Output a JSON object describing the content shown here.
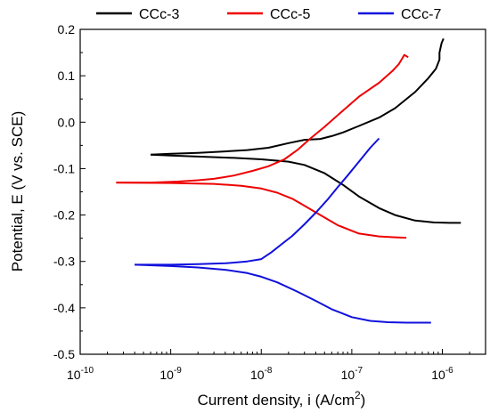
{
  "chart_data": {
    "type": "line",
    "title": "",
    "xlabel_parts": [
      "Current density, i (A/cm",
      "2",
      ")"
    ],
    "ylabel": "Potential, E (V vs. SCE)",
    "x_scale": "log",
    "xlim": [
      1e-10,
      3e-06
    ],
    "ylim": [
      -0.5,
      0.2
    ],
    "x_ticks": [
      {
        "base": "10",
        "exp": "-10",
        "value": 1e-10
      },
      {
        "base": "10",
        "exp": "-9",
        "value": 1e-09
      },
      {
        "base": "10",
        "exp": "-8",
        "value": 1e-08
      },
      {
        "base": "10",
        "exp": "-7",
        "value": 1e-07
      },
      {
        "base": "10",
        "exp": "-6",
        "value": 1e-06
      }
    ],
    "y_ticks": [
      "0.2",
      "0.1",
      "0.0",
      "-0.1",
      "-0.2",
      "-0.3",
      "-0.4",
      "-0.5"
    ],
    "grid": false,
    "legend_position": "top",
    "series": [
      {
        "name": "CCc-3",
        "color": "#000000",
        "anodic": [
          [
            6e-10,
            -0.07
          ],
          [
            1e-09,
            -0.068
          ],
          [
            2e-09,
            -0.066
          ],
          [
            4e-09,
            -0.063
          ],
          [
            7e-09,
            -0.06
          ],
          [
            1.2e-08,
            -0.055
          ],
          [
            2e-08,
            -0.045
          ],
          [
            3e-08,
            -0.038
          ],
          [
            4.5e-08,
            -0.036
          ],
          [
            6e-08,
            -0.03
          ],
          [
            8e-08,
            -0.022
          ],
          [
            1.2e-07,
            -0.008
          ],
          [
            2e-07,
            0.01
          ],
          [
            3e-07,
            0.03
          ],
          [
            5e-07,
            0.065
          ],
          [
            7e-07,
            0.095
          ],
          [
            8.5e-07,
            0.115
          ],
          [
            9.3e-07,
            0.135
          ],
          [
            9.3e-07,
            0.15
          ],
          [
            9.8e-07,
            0.17
          ],
          [
            1.03e-06,
            0.18
          ]
        ],
        "cathodic": [
          [
            6e-10,
            -0.07
          ],
          [
            1e-09,
            -0.072
          ],
          [
            2e-09,
            -0.074
          ],
          [
            5e-09,
            -0.077
          ],
          [
            1e-08,
            -0.08
          ],
          [
            2e-08,
            -0.085
          ],
          [
            3e-08,
            -0.092
          ],
          [
            5e-08,
            -0.11
          ],
          [
            8e-08,
            -0.135
          ],
          [
            1.2e-07,
            -0.16
          ],
          [
            2e-07,
            -0.185
          ],
          [
            3e-07,
            -0.2
          ],
          [
            5e-07,
            -0.212
          ],
          [
            8e-07,
            -0.216
          ],
          [
            1.2e-06,
            -0.217
          ],
          [
            1.6e-06,
            -0.217
          ]
        ]
      },
      {
        "name": "CCc-5",
        "color": "#ee0000",
        "anodic": [
          [
            2.5e-10,
            -0.13
          ],
          [
            6e-10,
            -0.13
          ],
          [
            1.2e-09,
            -0.128
          ],
          [
            2e-09,
            -0.125
          ],
          [
            3e-09,
            -0.122
          ],
          [
            5e-09,
            -0.115
          ],
          [
            8e-09,
            -0.105
          ],
          [
            1.2e-08,
            -0.095
          ],
          [
            1.8e-08,
            -0.08
          ],
          [
            2.5e-08,
            -0.06
          ],
          [
            3.5e-08,
            -0.035
          ],
          [
            5e-08,
            -0.01
          ],
          [
            8e-08,
            0.025
          ],
          [
            1.2e-07,
            0.055
          ],
          [
            2e-07,
            0.085
          ],
          [
            2.8e-07,
            0.11
          ],
          [
            3.3e-07,
            0.125
          ],
          [
            3.8e-07,
            0.145
          ],
          [
            4.2e-07,
            0.14
          ]
        ],
        "cathodic": [
          [
            2.5e-10,
            -0.13
          ],
          [
            1e-09,
            -0.131
          ],
          [
            3e-09,
            -0.133
          ],
          [
            6e-09,
            -0.137
          ],
          [
            1e-08,
            -0.143
          ],
          [
            1.5e-08,
            -0.152
          ],
          [
            2.2e-08,
            -0.165
          ],
          [
            3e-08,
            -0.18
          ],
          [
            4.5e-08,
            -0.2
          ],
          [
            7e-08,
            -0.222
          ],
          [
            1.2e-07,
            -0.24
          ],
          [
            2e-07,
            -0.246
          ],
          [
            3e-07,
            -0.248
          ],
          [
            4e-07,
            -0.249
          ]
        ]
      },
      {
        "name": "CCc-7",
        "color": "#1010dd",
        "anodic": [
          [
            4e-10,
            -0.307
          ],
          [
            1e-09,
            -0.307
          ],
          [
            2e-09,
            -0.306
          ],
          [
            4e-09,
            -0.304
          ],
          [
            7e-09,
            -0.3
          ],
          [
            1e-08,
            -0.295
          ],
          [
            1.3e-08,
            -0.28
          ],
          [
            1.7e-08,
            -0.262
          ],
          [
            2.2e-08,
            -0.245
          ],
          [
            3e-08,
            -0.22
          ],
          [
            4e-08,
            -0.195
          ],
          [
            5.5e-08,
            -0.165
          ],
          [
            7e-08,
            -0.14
          ],
          [
            9e-08,
            -0.115
          ],
          [
            1.2e-07,
            -0.085
          ],
          [
            1.6e-07,
            -0.055
          ],
          [
            2e-07,
            -0.035
          ]
        ],
        "cathodic": [
          [
            4e-10,
            -0.307
          ],
          [
            1e-09,
            -0.31
          ],
          [
            2e-09,
            -0.313
          ],
          [
            4e-09,
            -0.318
          ],
          [
            7e-09,
            -0.325
          ],
          [
            1e-08,
            -0.333
          ],
          [
            1.5e-08,
            -0.345
          ],
          [
            2.5e-08,
            -0.365
          ],
          [
            4e-08,
            -0.385
          ],
          [
            6e-08,
            -0.403
          ],
          [
            1e-07,
            -0.42
          ],
          [
            1.6e-07,
            -0.428
          ],
          [
            2.5e-07,
            -0.431
          ],
          [
            4e-07,
            -0.432
          ],
          [
            7.5e-07,
            -0.432
          ]
        ]
      }
    ]
  }
}
